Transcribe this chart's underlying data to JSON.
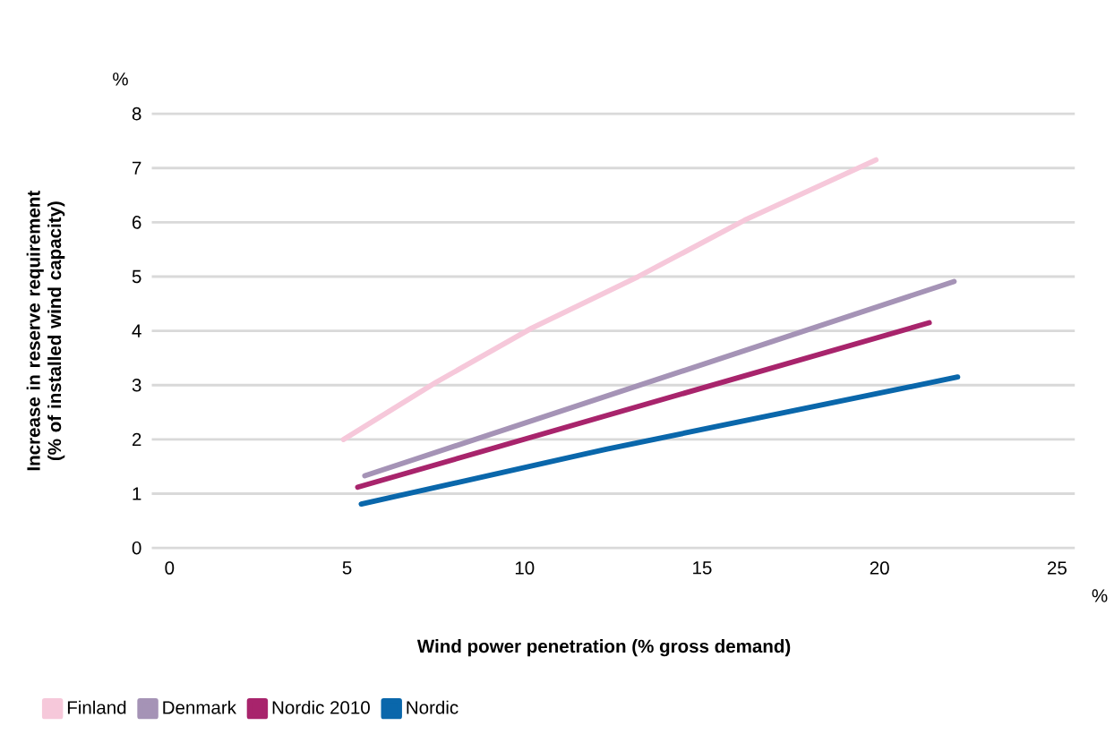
{
  "chart_data": {
    "type": "line",
    "xlabel": "Wind power penetration (% gross demand)",
    "ylabel": "Increase in reserve requirement\n(% of installed wind capacity)",
    "annotations": [
      "%",
      "%"
    ],
    "xlim": [
      -0.5,
      25.5
    ],
    "xticks": [
      0,
      5,
      10,
      15,
      20,
      25
    ],
    "ylim": [
      0,
      8
    ],
    "yticks": [
      0,
      1,
      2,
      3,
      4,
      5,
      6,
      7,
      8
    ],
    "grid": "y",
    "legend": "bottom left",
    "marker": "none",
    "line_style": "solid",
    "series": [
      {
        "name": "Finland",
        "color": "#f6c8da",
        "x": [
          4.9,
          7.5,
          10.2,
          13.2,
          16.2,
          19.9
        ],
        "values": [
          2.0,
          3.05,
          4.05,
          5.0,
          6.04,
          7.15
        ]
      },
      {
        "name": "Denmark",
        "color": "#a593b6",
        "x": [
          5.5,
          22.1
        ],
        "values": [
          1.33,
          4.91
        ]
      },
      {
        "name": "Nordic 2010",
        "color": "#a8246c",
        "x": [
          5.3,
          21.4
        ],
        "values": [
          1.12,
          4.15
        ]
      },
      {
        "name": "Nordic",
        "color": "#0a67ab",
        "x": [
          5.4,
          12.3,
          22.2
        ],
        "values": [
          0.81,
          1.82,
          3.15
        ]
      }
    ]
  }
}
